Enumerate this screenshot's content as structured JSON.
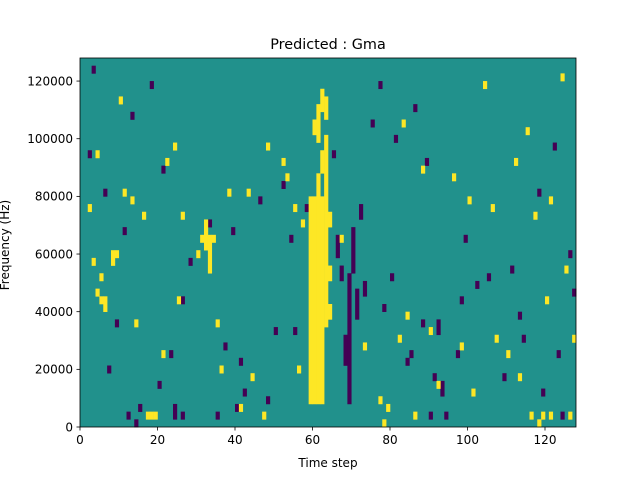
{
  "chart_data": {
    "type": "heatmap",
    "title": "Predicted : Gma",
    "xlabel": "Time step",
    "ylabel": "Frequency (Hz)",
    "xlim": [
      0,
      128
    ],
    "ylim": [
      0,
      128000
    ],
    "xticks": [
      0,
      20,
      40,
      60,
      80,
      100,
      120
    ],
    "yticks": [
      0,
      20000,
      40000,
      60000,
      80000,
      100000,
      120000
    ],
    "rows": 48,
    "value_range": [
      -1,
      1
    ],
    "colors": {
      "low": "#440154",
      "mid": "#21918c",
      "high": "#fde725"
    },
    "background_value": 0,
    "high_cells": [
      [
        59,
        3,
        30
      ],
      [
        60,
        3,
        30
      ],
      [
        61,
        3,
        33
      ],
      [
        62,
        3,
        30
      ],
      [
        63,
        13,
        38
      ],
      [
        64,
        14,
        16
      ],
      [
        64,
        19,
        21
      ],
      [
        64,
        26,
        28
      ],
      [
        60,
        38,
        40
      ],
      [
        61,
        37,
        42
      ],
      [
        62,
        41,
        44
      ],
      [
        63,
        40,
        43
      ],
      [
        62,
        33,
        36
      ],
      [
        31,
        24,
        25
      ],
      [
        32,
        23,
        27
      ],
      [
        33,
        20,
        25
      ],
      [
        30,
        22,
        23
      ],
      [
        34,
        24,
        25
      ],
      [
        17,
        1,
        2
      ],
      [
        18,
        1,
        2
      ],
      [
        19,
        1,
        2
      ],
      [
        8,
        21,
        23
      ],
      [
        9,
        22,
        23
      ],
      [
        10,
        42,
        43
      ],
      [
        16,
        27,
        28
      ],
      [
        21,
        9,
        10
      ],
      [
        22,
        34,
        35
      ],
      [
        4,
        35,
        36
      ],
      [
        5,
        16,
        17
      ],
      [
        6,
        15,
        17
      ],
      [
        11,
        30,
        31
      ],
      [
        25,
        16,
        17
      ],
      [
        26,
        27,
        28
      ],
      [
        41,
        2,
        3
      ],
      [
        43,
        30,
        31
      ],
      [
        47,
        1,
        2
      ],
      [
        52,
        34,
        35
      ],
      [
        53,
        32,
        33
      ],
      [
        56,
        7,
        8
      ],
      [
        57,
        26,
        27
      ],
      [
        77,
        3,
        4
      ],
      [
        78,
        0,
        1
      ],
      [
        79,
        2,
        3
      ],
      [
        82,
        11,
        12
      ],
      [
        84,
        14,
        15
      ],
      [
        86,
        1,
        2
      ],
      [
        92,
        5,
        6
      ],
      [
        98,
        10,
        11
      ],
      [
        100,
        29,
        30
      ],
      [
        101,
        4,
        5
      ],
      [
        106,
        28,
        29
      ],
      [
        110,
        9,
        10
      ],
      [
        113,
        6,
        7
      ],
      [
        116,
        1,
        2
      ],
      [
        118,
        0,
        1
      ],
      [
        119,
        1,
        2
      ],
      [
        120,
        16,
        17
      ],
      [
        121,
        1,
        2
      ],
      [
        125,
        20,
        21
      ],
      [
        126,
        1,
        2
      ],
      [
        127,
        11,
        12
      ],
      [
        124,
        45,
        46
      ],
      [
        121,
        29,
        30
      ],
      [
        3,
        21,
        22
      ],
      [
        4,
        17,
        18
      ],
      [
        5,
        19,
        20
      ],
      [
        2,
        28,
        29
      ],
      [
        13,
        29,
        30
      ],
      [
        14,
        13,
        14
      ],
      [
        24,
        36,
        37
      ],
      [
        35,
        13,
        14
      ],
      [
        36,
        7,
        8
      ],
      [
        44,
        6,
        7
      ],
      [
        38,
        30,
        31
      ],
      [
        48,
        36,
        37
      ],
      [
        55,
        28,
        29
      ],
      [
        67,
        24,
        25
      ],
      [
        73,
        10,
        11
      ],
      [
        83,
        39,
        40
      ],
      [
        88,
        33,
        34
      ],
      [
        90,
        12,
        13
      ],
      [
        96,
        32,
        33
      ],
      [
        104,
        44,
        45
      ],
      [
        107,
        11,
        12
      ],
      [
        112,
        34,
        35
      ],
      [
        115,
        38,
        39
      ],
      [
        117,
        27,
        28
      ]
    ],
    "low_cells": [
      [
        69,
        3,
        20
      ],
      [
        68,
        8,
        12
      ],
      [
        70,
        20,
        26
      ],
      [
        71,
        14,
        18
      ],
      [
        67,
        19,
        21
      ],
      [
        66,
        22,
        25
      ],
      [
        72,
        27,
        29
      ],
      [
        73,
        17,
        19
      ],
      [
        35,
        1,
        2
      ],
      [
        26,
        1,
        2
      ],
      [
        24,
        1,
        3
      ],
      [
        15,
        2,
        3
      ],
      [
        14,
        0,
        1
      ],
      [
        12,
        1,
        2
      ],
      [
        33,
        26,
        27
      ],
      [
        39,
        25,
        26
      ],
      [
        23,
        9,
        10
      ],
      [
        20,
        5,
        6
      ],
      [
        85,
        9,
        10
      ],
      [
        88,
        13,
        14
      ],
      [
        91,
        6,
        7
      ],
      [
        94,
        1,
        2
      ],
      [
        97,
        9,
        10
      ],
      [
        102,
        18,
        19
      ],
      [
        109,
        6,
        7
      ],
      [
        124,
        1,
        2
      ],
      [
        113,
        14,
        15
      ],
      [
        78,
        15,
        16
      ],
      [
        80,
        19,
        20
      ],
      [
        84,
        8,
        9
      ],
      [
        90,
        1,
        2
      ],
      [
        93,
        4,
        6
      ],
      [
        89,
        34,
        35
      ],
      [
        98,
        16,
        17
      ],
      [
        111,
        20,
        21
      ],
      [
        118,
        30,
        31
      ],
      [
        122,
        36,
        37
      ],
      [
        126,
        22,
        23
      ],
      [
        46,
        29,
        30
      ],
      [
        52,
        31,
        32
      ],
      [
        41,
        8,
        9
      ],
      [
        55,
        12,
        13
      ],
      [
        58,
        28,
        29
      ],
      [
        65,
        35,
        36
      ],
      [
        75,
        39,
        40
      ],
      [
        77,
        44,
        45
      ],
      [
        81,
        37,
        38
      ],
      [
        86,
        41,
        42
      ],
      [
        92,
        12,
        14
      ],
      [
        99,
        24,
        25
      ],
      [
        105,
        19,
        20
      ],
      [
        114,
        11,
        12
      ],
      [
        119,
        4,
        5
      ],
      [
        123,
        9,
        10
      ],
      [
        127,
        17,
        18
      ],
      [
        7,
        7,
        8
      ],
      [
        3,
        46,
        47
      ],
      [
        2,
        35,
        36
      ],
      [
        6,
        30,
        31
      ],
      [
        9,
        13,
        14
      ],
      [
        11,
        25,
        26
      ],
      [
        13,
        40,
        41
      ],
      [
        18,
        44,
        45
      ],
      [
        21,
        33,
        34
      ],
      [
        26,
        16,
        17
      ],
      [
        28,
        21,
        22
      ],
      [
        37,
        10,
        11
      ],
      [
        40,
        2,
        3
      ],
      [
        42,
        4,
        5
      ],
      [
        48,
        3,
        4
      ],
      [
        50,
        12,
        13
      ],
      [
        54,
        24,
        25
      ]
    ]
  }
}
